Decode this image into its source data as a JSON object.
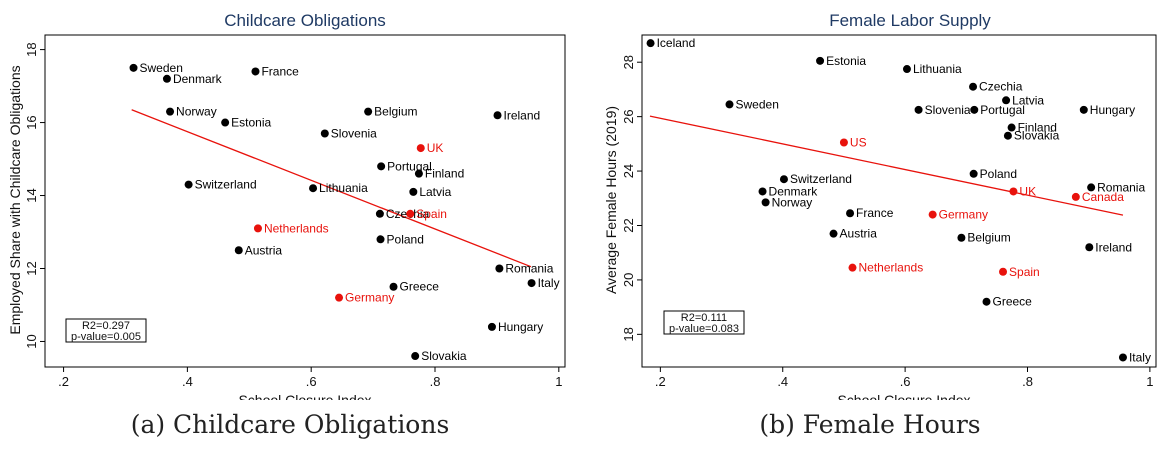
{
  "colors": {
    "default": "#000000",
    "highlight": "#e8120c",
    "fit_line": "#e8120c",
    "title": "#1f3a64"
  },
  "captions": {
    "a": "(a) Childcare Obligations",
    "b": "(b) Female Hours"
  },
  "chart_data": [
    {
      "type": "scatter",
      "title": "Childcare Obligations",
      "xlabel": "School Closure Index",
      "ylabel": "Employed Share with Childcare Obligations",
      "xlim": [
        0.17,
        1.01
      ],
      "ylim": [
        9.3,
        18.4
      ],
      "xticks": [
        0.2,
        0.4,
        0.6,
        0.8,
        1
      ],
      "xtick_labels": [
        ".2",
        ".4",
        ".6",
        ".8",
        "1"
      ],
      "yticks": [
        10,
        12,
        14,
        16,
        18
      ],
      "ytick_labels": [
        "10",
        "12",
        "14",
        "16",
        "18"
      ],
      "fit_line": {
        "x": [
          0.31,
          0.955
        ],
        "y": [
          16.35,
          12.05
        ]
      },
      "stats": {
        "r2": "R2=0.297",
        "pvalue": "p-value=0.005"
      },
      "grid": false,
      "points": [
        {
          "label": "Sweden",
          "x": 0.313,
          "y": 17.5,
          "highlight": false
        },
        {
          "label": "Denmark",
          "x": 0.367,
          "y": 17.2,
          "highlight": false
        },
        {
          "label": "France",
          "x": 0.51,
          "y": 17.4,
          "highlight": false
        },
        {
          "label": "Norway",
          "x": 0.372,
          "y": 16.3,
          "highlight": false
        },
        {
          "label": "Estonia",
          "x": 0.461,
          "y": 16.0,
          "highlight": false
        },
        {
          "label": "Belgium",
          "x": 0.692,
          "y": 16.3,
          "highlight": false
        },
        {
          "label": "Ireland",
          "x": 0.901,
          "y": 16.2,
          "highlight": false
        },
        {
          "label": "Slovenia",
          "x": 0.622,
          "y": 15.7,
          "highlight": false
        },
        {
          "label": "UK",
          "x": 0.777,
          "y": 15.3,
          "highlight": true
        },
        {
          "label": "Portugal",
          "x": 0.713,
          "y": 14.8,
          "highlight": false
        },
        {
          "label": "Finland",
          "x": 0.774,
          "y": 14.6,
          "highlight": false
        },
        {
          "label": "Switzerland",
          "x": 0.402,
          "y": 14.3,
          "highlight": false
        },
        {
          "label": "Lithuania",
          "x": 0.603,
          "y": 14.2,
          "highlight": false
        },
        {
          "label": "Latvia",
          "x": 0.765,
          "y": 14.1,
          "highlight": false
        },
        {
          "label": "Czechia",
          "x": 0.711,
          "y": 13.5,
          "highlight": false
        },
        {
          "label": "Spain",
          "x": 0.76,
          "y": 13.5,
          "highlight": true
        },
        {
          "label": "Netherlands",
          "x": 0.514,
          "y": 13.1,
          "highlight": true
        },
        {
          "label": "Poland",
          "x": 0.712,
          "y": 12.8,
          "highlight": false
        },
        {
          "label": "Austria",
          "x": 0.483,
          "y": 12.5,
          "highlight": false
        },
        {
          "label": "Romania",
          "x": 0.904,
          "y": 12.0,
          "highlight": false
        },
        {
          "label": "Greece",
          "x": 0.733,
          "y": 11.5,
          "highlight": false
        },
        {
          "label": "Italy",
          "x": 0.956,
          "y": 11.6,
          "highlight": false
        },
        {
          "label": "Germany",
          "x": 0.645,
          "y": 11.2,
          "highlight": true
        },
        {
          "label": "Hungary",
          "x": 0.892,
          "y": 10.4,
          "highlight": false
        },
        {
          "label": "Slovakia",
          "x": 0.768,
          "y": 9.6,
          "highlight": false
        }
      ]
    },
    {
      "type": "scatter",
      "title": "Female Labor Supply",
      "xlabel": "School Closure Index",
      "ylabel": "Average Female Hours (2019)",
      "xlim": [
        0.17,
        1.01
      ],
      "ylim": [
        16.8,
        29.0
      ],
      "xticks": [
        0.2,
        0.4,
        0.6,
        0.8,
        1
      ],
      "xtick_labels": [
        ".2",
        ".4",
        ".6",
        ".8",
        "1"
      ],
      "yticks": [
        18,
        20,
        22,
        24,
        26,
        28
      ],
      "ytick_labels": [
        "18",
        "20",
        "22",
        "24",
        "26",
        "28"
      ],
      "fit_line": {
        "x": [
          0.183,
          0.956
        ],
        "y": [
          26.02,
          22.38
        ]
      },
      "stats": {
        "r2": "R2=0.111",
        "pvalue": "p-value=0.083"
      },
      "grid": false,
      "points": [
        {
          "label": "Iceland",
          "x": 0.184,
          "y": 28.7,
          "highlight": false
        },
        {
          "label": "Estonia",
          "x": 0.461,
          "y": 28.05,
          "highlight": false
        },
        {
          "label": "Lithuania",
          "x": 0.603,
          "y": 27.75,
          "highlight": false
        },
        {
          "label": "Czechia",
          "x": 0.711,
          "y": 27.1,
          "highlight": false
        },
        {
          "label": "Latvia",
          "x": 0.765,
          "y": 26.6,
          "highlight": false
        },
        {
          "label": "Sweden",
          "x": 0.313,
          "y": 26.45,
          "highlight": false
        },
        {
          "label": "Slovenia",
          "x": 0.622,
          "y": 26.25,
          "highlight": false
        },
        {
          "label": "Portugal",
          "x": 0.713,
          "y": 26.25,
          "highlight": false
        },
        {
          "label": "Hungary",
          "x": 0.892,
          "y": 26.25,
          "highlight": false
        },
        {
          "label": "Finland",
          "x": 0.774,
          "y": 25.6,
          "highlight": false
        },
        {
          "label": "Slovakia",
          "x": 0.768,
          "y": 25.3,
          "highlight": false
        },
        {
          "label": "US",
          "x": 0.5,
          "y": 25.05,
          "highlight": true
        },
        {
          "label": "Poland",
          "x": 0.712,
          "y": 23.9,
          "highlight": false
        },
        {
          "label": "Switzerland",
          "x": 0.402,
          "y": 23.7,
          "highlight": false
        },
        {
          "label": "Romania",
          "x": 0.904,
          "y": 23.4,
          "highlight": false
        },
        {
          "label": "Denmark",
          "x": 0.367,
          "y": 23.25,
          "highlight": false
        },
        {
          "label": "UK",
          "x": 0.777,
          "y": 23.25,
          "highlight": true
        },
        {
          "label": "Canada",
          "x": 0.879,
          "y": 23.05,
          "highlight": true
        },
        {
          "label": "Norway",
          "x": 0.372,
          "y": 22.85,
          "highlight": false
        },
        {
          "label": "France",
          "x": 0.51,
          "y": 22.45,
          "highlight": false
        },
        {
          "label": "Germany",
          "x": 0.645,
          "y": 22.4,
          "highlight": true
        },
        {
          "label": "Austria",
          "x": 0.483,
          "y": 21.7,
          "highlight": false
        },
        {
          "label": "Belgium",
          "x": 0.692,
          "y": 21.55,
          "highlight": false
        },
        {
          "label": "Ireland",
          "x": 0.901,
          "y": 21.2,
          "highlight": false
        },
        {
          "label": "Netherlands",
          "x": 0.514,
          "y": 20.45,
          "highlight": true
        },
        {
          "label": "Spain",
          "x": 0.76,
          "y": 20.3,
          "highlight": true
        },
        {
          "label": "Greece",
          "x": 0.733,
          "y": 19.2,
          "highlight": false
        },
        {
          "label": "Italy",
          "x": 0.956,
          "y": 17.15,
          "highlight": false
        }
      ]
    }
  ]
}
